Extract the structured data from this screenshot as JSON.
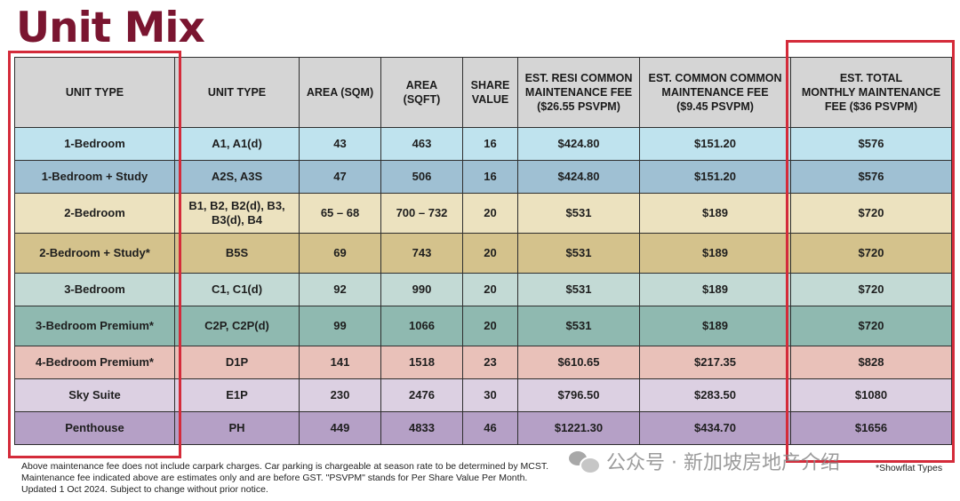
{
  "title": "Unit Mix",
  "table": {
    "headers": [
      "UNIT TYPE",
      "UNIT TYPE",
      "AREA (SQM)",
      "AREA\n(SQFT)",
      "SHARE\nVALUE",
      "EST. RESI COMMON\nMAINTENANCE FEE\n($26.55 PSVPM)",
      "EST. COMMON COMMON\nMAINTENANCE FEE\n($9.45 PSVPM)",
      "EST. TOTAL\nMONTHLY MAINTENANCE\nFEE ($36 PSVPM)"
    ],
    "rows": [
      {
        "bg": "#bfe3ee",
        "cells": [
          "1-Bedroom",
          "A1, A1(d)",
          "43",
          "463",
          "16",
          "$424.80",
          "$151.20",
          "$576"
        ]
      },
      {
        "bg": "#9fc0d3",
        "cells": [
          "1-Bedroom +  Study",
          "A2S, A3S",
          "47",
          "506",
          "16",
          "$424.80",
          "$151.20",
          "$576"
        ]
      },
      {
        "bg": "#ece2bf",
        "cells": [
          "2-Bedroom",
          "B1, B2, B2(d), B3,\nB3(d), B4",
          "65 – 68",
          "700 – 732",
          "20",
          "$531",
          "$189",
          "$720"
        ]
      },
      {
        "bg": "#d4c28c",
        "cells": [
          "2-Bedroom + Study*",
          "B5S",
          "69",
          "743",
          "20",
          "$531",
          "$189",
          "$720"
        ]
      },
      {
        "bg": "#c3dad5",
        "cells": [
          "3-Bedroom",
          "C1, C1(d)",
          "92",
          "990",
          "20",
          "$531",
          "$189",
          "$720"
        ]
      },
      {
        "bg": "#8fb9b0",
        "cells": [
          "3-Bedroom Premium*",
          "C2P, C2P(d)",
          "99",
          "1066",
          "20",
          "$531",
          "$189",
          "$720"
        ]
      },
      {
        "bg": "#e9c1b9",
        "cells": [
          "4-Bedroom Premium*",
          "D1P",
          "141",
          "1518",
          "23",
          "$610.65",
          "$217.35",
          "$828"
        ]
      },
      {
        "bg": "#dcd0e2",
        "cells": [
          "Sky Suite",
          "E1P",
          "230",
          "2476",
          "30",
          "$796.50",
          "$283.50",
          "$1080"
        ]
      },
      {
        "bg": "#b5a0c6",
        "cells": [
          "Penthouse",
          "PH",
          "449",
          "4833",
          "46",
          "$1221.30",
          "$434.70",
          "$1656"
        ]
      }
    ]
  },
  "footnote": [
    "Above maintenance fee does not include carpark charges. Car parking is chargeable at season rate to be determined by MCST.",
    "Maintenance fee indicated above are estimates only and are before GST. \"PSVPM\" stands for Per Share Value Per Month.",
    "Updated 1 Oct 2024. Subject to change without prior notice."
  ],
  "showflat_note": "*Showflat Types",
  "watermark": {
    "text": "公众号 · 新加坡房地产介绍",
    "icon": "wechat-icon"
  },
  "highlight_color": "#d42b3a"
}
